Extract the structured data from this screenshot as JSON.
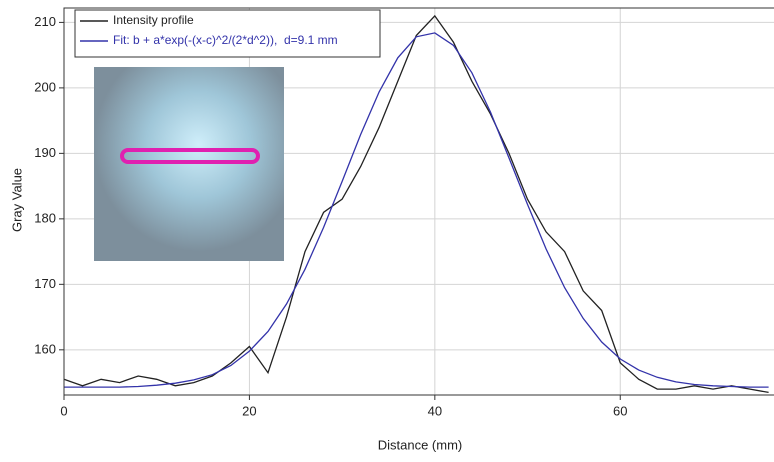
{
  "chart_data": {
    "type": "line",
    "x_label": "Distance (mm)",
    "y_label": "Gray Value",
    "x": [
      0,
      2,
      4,
      6,
      8,
      10,
      12,
      14,
      16,
      18,
      20,
      22,
      24,
      26,
      28,
      30,
      32,
      34,
      36,
      38,
      40,
      42,
      44,
      46,
      48,
      50,
      52,
      54,
      56,
      58,
      60,
      62,
      64,
      66,
      68,
      70,
      72,
      74,
      76
    ],
    "series": [
      {
        "name": "Intensity profile",
        "color": "#222222",
        "values": [
          155.5,
          154.5,
          155.5,
          155,
          156,
          155.5,
          154.5,
          155,
          156,
          158,
          160.5,
          156.5,
          165,
          175,
          181,
          183,
          188,
          194,
          201,
          208,
          211,
          207,
          201,
          196,
          190,
          183,
          178,
          175,
          169,
          166,
          158,
          155.5,
          154,
          154,
          154.5,
          154,
          154.5,
          154,
          153.5
        ]
      },
      {
        "name": "Fit: b + a*exp(-(x-c)^2/(2*d^2)),  d=9.1 mm",
        "color": "#3333aa",
        "values": [
          154.3,
          154.3,
          154.3,
          154.3,
          154.4,
          154.6,
          154.9,
          155.4,
          156.2,
          157.6,
          159.8,
          162.8,
          167.0,
          172.3,
          178.7,
          185.7,
          192.9,
          199.4,
          204.6,
          207.8,
          208.4,
          206.5,
          202.3,
          196.3,
          189.3,
          182.2,
          175.4,
          169.5,
          164.8,
          161.2,
          158.6,
          156.9,
          155.8,
          155.1,
          154.7,
          154.5,
          154.4,
          154.3,
          154.3
        ]
      }
    ],
    "xlim": [
      0,
      76.8
    ],
    "ylim": [
      153.1,
      212.2
    ],
    "xticks": [
      0,
      20,
      40,
      60
    ],
    "yticks": [
      160,
      170,
      180,
      190,
      200,
      210
    ],
    "grid": true,
    "legend": "upper left"
  }
}
